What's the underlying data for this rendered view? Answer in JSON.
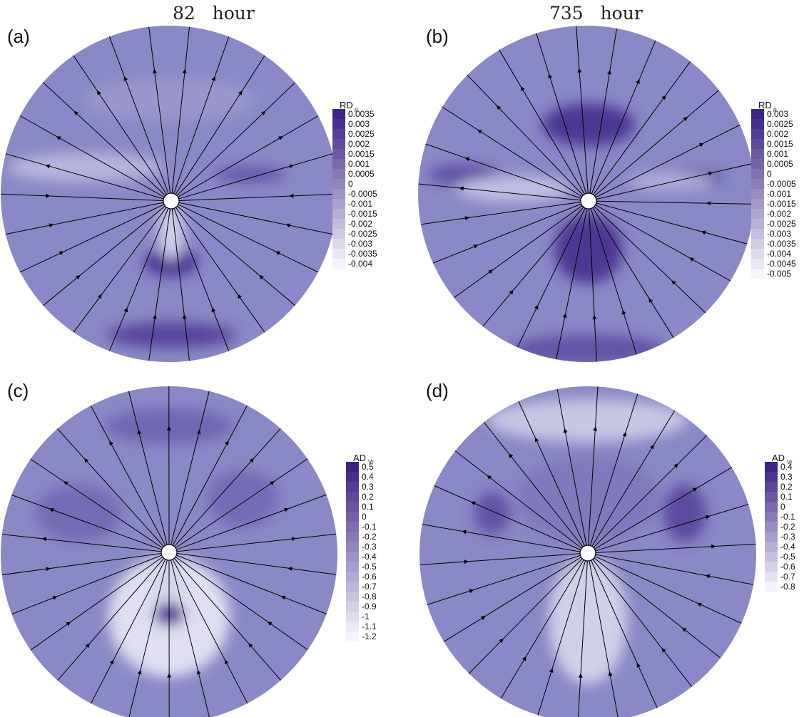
{
  "columns": [
    {
      "value": "82",
      "unit": "hour"
    },
    {
      "value": "735",
      "unit": "hour"
    }
  ],
  "colors": {
    "base": "#8a88c6",
    "dark": "#3d2386",
    "light": "#f4f4fb",
    "streamline": "#000000"
  },
  "chart_data": [
    {
      "type": "heatmap",
      "panel": "(a)",
      "time": "82 hour",
      "legend": {
        "title": "RD",
        "subscript": "ρ"
      },
      "levels": [
        "0.0035",
        "0.003",
        "0.0025",
        "0.002",
        "0.0015",
        "0.001",
        "0.0005",
        "0",
        "-0.0005",
        "-0.001",
        "-0.0015",
        "-0.002",
        "-0.0025",
        "-0.003",
        "-0.0035",
        "-0.004"
      ],
      "features": {
        "dark_spots": [
          "below-center",
          "bottom-rim"
        ],
        "light_bands": [
          "left-wedge",
          "below-hole"
        ]
      }
    },
    {
      "type": "heatmap",
      "panel": "(b)",
      "time": "735 hour",
      "legend": {
        "title": "RD",
        "subscript": "ρ"
      },
      "levels": [
        "0.003",
        "0.0025",
        "0.002",
        "0.0015",
        "0.001",
        "0.0005",
        "0",
        "-0.0005",
        "-0.001",
        "-0.0015",
        "-0.002",
        "-0.0025",
        "-0.003",
        "-0.0035",
        "-0.004",
        "-0.0045",
        "-0.005"
      ],
      "features": {
        "dark_spots": [
          "above-center",
          "below-center",
          "bottom-rim"
        ],
        "light_bands": [
          "left-wedge",
          "right-wedge"
        ]
      }
    },
    {
      "type": "heatmap",
      "panel": "(c)",
      "time": "82 hour",
      "legend": {
        "title": "AD",
        "subscript": "Vr"
      },
      "levels": [
        "0.5",
        "0.4",
        "0.3",
        "0.2",
        "0.1",
        "0",
        "-0.1",
        "-0.2",
        "-0.3",
        "-0.4",
        "-0.5",
        "-0.6",
        "-0.7",
        "-0.8",
        "-0.9",
        "-1",
        "-1.1",
        "-1.2"
      ],
      "features": {
        "dark_spots": [
          "below-center"
        ],
        "light_bands": [
          "bottom-lobe",
          "below-hole"
        ]
      }
    },
    {
      "type": "heatmap",
      "panel": "(d)",
      "time": "735 hour",
      "legend": {
        "title": "AD",
        "subscript": "Vr"
      },
      "levels": [
        "0.4",
        "0.3",
        "0.2",
        "0.1",
        "0",
        "-0.1",
        "-0.2",
        "-0.3",
        "-0.4",
        "-0.5",
        "-0.6",
        "-0.7",
        "-0.8"
      ],
      "features": {
        "dark_spots": [
          "right-mid",
          "left-mid"
        ],
        "light_bands": [
          "top-arc",
          "below-center"
        ]
      }
    }
  ]
}
